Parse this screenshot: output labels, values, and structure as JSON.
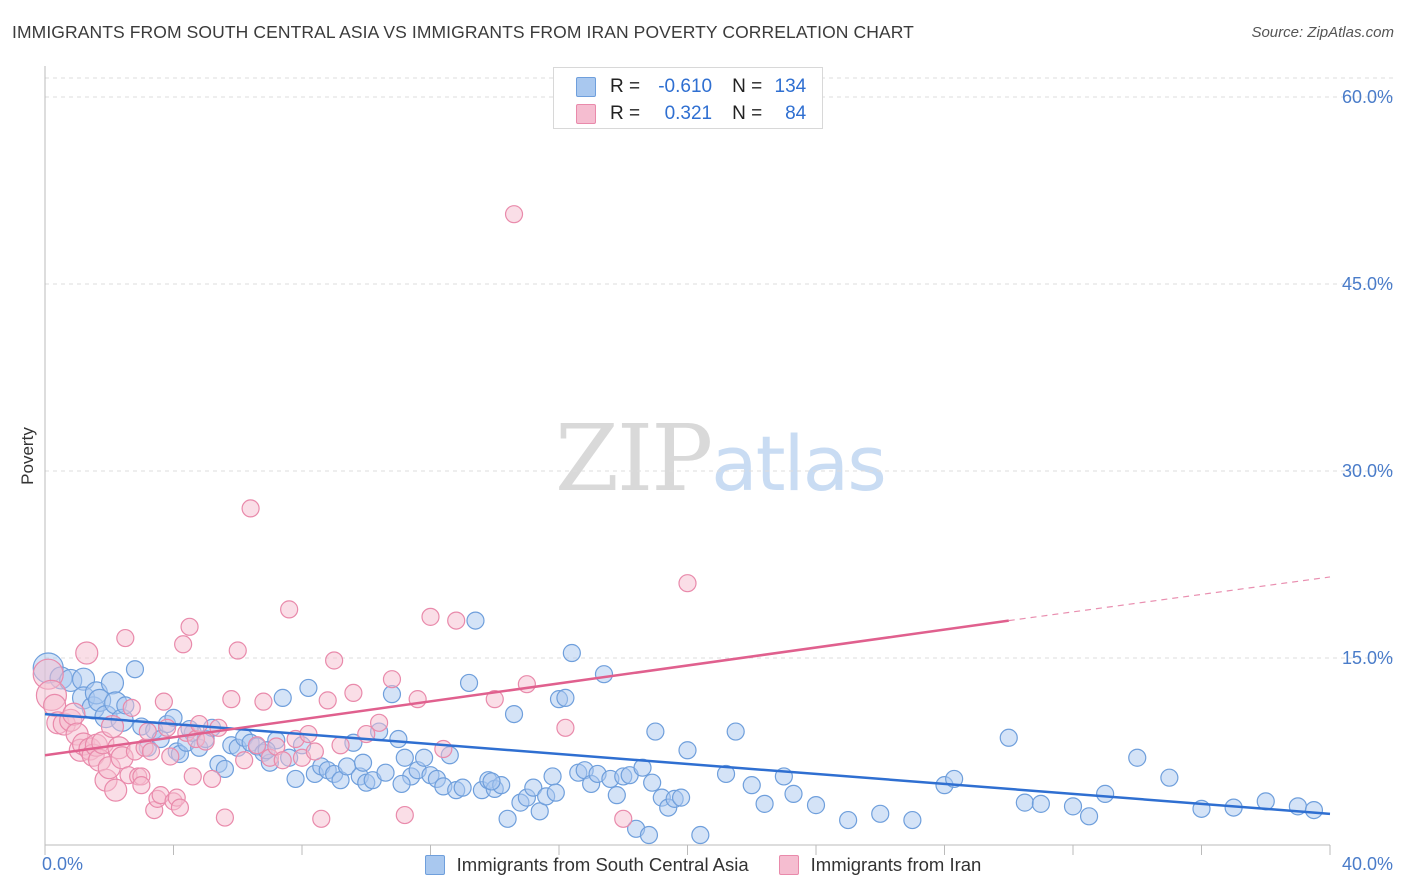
{
  "header": {
    "title": "IMMIGRANTS FROM SOUTH CENTRAL ASIA VS IMMIGRANTS FROM IRAN POVERTY CORRELATION CHART",
    "source": "Source: ZipAtlas.com"
  },
  "watermark": {
    "zip": "ZIP",
    "atlas": "atlas"
  },
  "legend": {
    "rows": [
      {
        "r_label": "R =",
        "r_value": "-0.610",
        "n_label": "N =",
        "n_value": "134",
        "color": "#8fb6ea"
      },
      {
        "r_label": "R =",
        "r_value": "0.321",
        "n_label": "N =",
        "n_value": "84",
        "color": "#f2a7c0"
      }
    ]
  },
  "colors": {
    "blue_fill": "#a9c8ef",
    "blue_stroke": "#6f9fdc",
    "blue_line": "#2f6fd1",
    "pink_fill": "#f5bdd0",
    "pink_stroke": "#e98aab",
    "pink_line": "#e0608e",
    "grid": "#dddddd",
    "tick_label": "#4a7cc9"
  },
  "chart_data": {
    "type": "scatter",
    "title": "IMMIGRANTS FROM SOUTH CENTRAL ASIA VS IMMIGRANTS FROM IRAN POVERTY CORRELATION CHART",
    "xlabel": "",
    "ylabel": "Poverty",
    "xlim": [
      0,
      40
    ],
    "ylim": [
      0,
      60
    ],
    "y_ticks": [
      15,
      30,
      45,
      60
    ],
    "y_tick_labels": [
      "15.0%",
      "30.0%",
      "45.0%",
      "60.0%"
    ],
    "x_tick_labels": [
      "0.0%",
      "40.0%"
    ],
    "grid": true,
    "legend_position": "top-center",
    "series": [
      {
        "name": "Immigrants from South Central Asia",
        "r": -0.61,
        "n": 134,
        "trend": {
          "x": [
            0,
            40
          ],
          "y": [
            10.5,
            2.5
          ]
        },
        "points": [
          [
            0.1,
            14.2
          ],
          [
            0.5,
            13.4
          ],
          [
            0.8,
            13.2
          ],
          [
            1.2,
            13.3
          ],
          [
            1.2,
            11.8
          ],
          [
            1.5,
            11.0
          ],
          [
            1.6,
            12.2
          ],
          [
            1.7,
            11.6
          ],
          [
            1.9,
            10.3
          ],
          [
            2.1,
            13.0
          ],
          [
            2.2,
            11.4
          ],
          [
            2.4,
            10.0
          ],
          [
            2.5,
            11.2
          ],
          [
            2.8,
            14.1
          ],
          [
            3.0,
            9.5
          ],
          [
            3.2,
            7.8
          ],
          [
            3.4,
            9.2
          ],
          [
            3.6,
            8.5
          ],
          [
            3.8,
            9.7
          ],
          [
            4.0,
            10.2
          ],
          [
            4.1,
            7.5
          ],
          [
            4.2,
            7.3
          ],
          [
            4.4,
            8.2
          ],
          [
            4.6,
            9.0
          ],
          [
            4.8,
            7.8
          ],
          [
            5.0,
            8.5
          ],
          [
            5.2,
            9.4
          ],
          [
            5.4,
            6.5
          ],
          [
            5.6,
            6.1
          ],
          [
            5.8,
            8.0
          ],
          [
            6.0,
            7.8
          ],
          [
            6.2,
            8.6
          ],
          [
            6.4,
            8.2
          ],
          [
            6.6,
            7.9
          ],
          [
            6.8,
            7.4
          ],
          [
            7.0,
            6.6
          ],
          [
            7.2,
            8.4
          ],
          [
            7.4,
            11.8
          ],
          [
            7.6,
            7.0
          ],
          [
            7.8,
            5.3
          ],
          [
            8.0,
            8.0
          ],
          [
            8.2,
            12.6
          ],
          [
            8.4,
            5.7
          ],
          [
            8.6,
            6.3
          ],
          [
            8.8,
            6.0
          ],
          [
            9.0,
            5.7
          ],
          [
            9.2,
            5.2
          ],
          [
            9.4,
            6.3
          ],
          [
            9.6,
            8.2
          ],
          [
            9.8,
            5.5
          ],
          [
            10.0,
            5.0
          ],
          [
            10.2,
            5.2
          ],
          [
            10.4,
            9.1
          ],
          [
            10.6,
            5.8
          ],
          [
            10.8,
            12.1
          ],
          [
            11.0,
            8.5
          ],
          [
            11.2,
            7.0
          ],
          [
            11.4,
            5.5
          ],
          [
            11.6,
            6.0
          ],
          [
            11.8,
            7.0
          ],
          [
            12.0,
            5.6
          ],
          [
            12.2,
            5.3
          ],
          [
            12.4,
            4.7
          ],
          [
            12.6,
            7.2
          ],
          [
            12.8,
            4.4
          ],
          [
            13.0,
            4.6
          ],
          [
            13.2,
            13.0
          ],
          [
            13.4,
            18.0
          ],
          [
            13.6,
            4.4
          ],
          [
            13.8,
            5.2
          ],
          [
            14.0,
            4.5
          ],
          [
            14.2,
            4.8
          ],
          [
            14.4,
            2.1
          ],
          [
            14.6,
            10.5
          ],
          [
            14.8,
            3.4
          ],
          [
            15.0,
            3.8
          ],
          [
            15.2,
            4.6
          ],
          [
            15.4,
            2.7
          ],
          [
            15.6,
            3.9
          ],
          [
            15.8,
            5.5
          ],
          [
            16.0,
            11.7
          ],
          [
            16.2,
            11.8
          ],
          [
            16.4,
            15.4
          ],
          [
            16.6,
            5.8
          ],
          [
            16.8,
            6.0
          ],
          [
            17.0,
            4.9
          ],
          [
            17.2,
            5.7
          ],
          [
            17.4,
            13.7
          ],
          [
            17.6,
            5.3
          ],
          [
            17.8,
            4.0
          ],
          [
            18.0,
            5.5
          ],
          [
            18.2,
            5.6
          ],
          [
            18.4,
            1.3
          ],
          [
            18.6,
            6.2
          ],
          [
            18.8,
            0.8
          ],
          [
            19.0,
            9.1
          ],
          [
            19.2,
            3.8
          ],
          [
            19.4,
            3.0
          ],
          [
            19.6,
            3.7
          ],
          [
            19.8,
            3.8
          ],
          [
            20.0,
            7.6
          ],
          [
            20.4,
            0.8
          ],
          [
            21.2,
            5.7
          ],
          [
            21.5,
            9.1
          ],
          [
            22.0,
            4.8
          ],
          [
            22.4,
            3.3
          ],
          [
            23.0,
            5.5
          ],
          [
            23.3,
            4.1
          ],
          [
            24.0,
            3.2
          ],
          [
            25.0,
            2.0
          ],
          [
            26.0,
            2.5
          ],
          [
            27.0,
            2.0
          ],
          [
            28.0,
            4.8
          ],
          [
            28.3,
            5.3
          ],
          [
            30.0,
            8.6
          ],
          [
            30.5,
            3.4
          ],
          [
            31.0,
            3.3
          ],
          [
            32.0,
            3.1
          ],
          [
            32.5,
            2.3
          ],
          [
            33.0,
            4.1
          ],
          [
            34.0,
            7.0
          ],
          [
            35.0,
            5.4
          ],
          [
            36.0,
            2.9
          ],
          [
            37.0,
            3.0
          ],
          [
            38.0,
            3.5
          ],
          [
            39.0,
            3.1
          ],
          [
            39.5,
            2.8
          ],
          [
            4.5,
            9.3
          ],
          [
            6.9,
            7.6
          ],
          [
            9.9,
            6.6
          ],
          [
            11.1,
            4.9
          ],
          [
            13.9,
            5.1
          ],
          [
            15.9,
            4.2
          ],
          [
            18.9,
            5.0
          ]
        ]
      },
      {
        "name": "Immigrants from Iran",
        "r": 0.321,
        "n": 84,
        "trend": {
          "x": [
            0,
            30
          ],
          "y": [
            7.2,
            18.0
          ],
          "dashed_to": {
            "x": 40,
            "y": 21.5
          }
        },
        "points": [
          [
            0.1,
            13.7
          ],
          [
            0.2,
            12.0
          ],
          [
            0.3,
            11.2
          ],
          [
            0.4,
            9.8
          ],
          [
            0.6,
            9.7
          ],
          [
            0.8,
            10.0
          ],
          [
            0.9,
            10.5
          ],
          [
            1.0,
            8.9
          ],
          [
            1.1,
            7.6
          ],
          [
            1.2,
            8.1
          ],
          [
            1.3,
            15.4
          ],
          [
            1.4,
            7.7
          ],
          [
            1.5,
            7.2
          ],
          [
            1.6,
            8.0
          ],
          [
            1.7,
            6.8
          ],
          [
            1.8,
            8.2
          ],
          [
            1.9,
            5.2
          ],
          [
            2.0,
            6.2
          ],
          [
            2.1,
            9.5
          ],
          [
            2.2,
            4.4
          ],
          [
            2.3,
            7.8
          ],
          [
            2.4,
            7.0
          ],
          [
            2.5,
            16.6
          ],
          [
            2.6,
            5.6
          ],
          [
            2.7,
            11.0
          ],
          [
            2.8,
            7.5
          ],
          [
            2.9,
            5.5
          ],
          [
            3.0,
            5.5
          ],
          [
            3.1,
            7.8
          ],
          [
            3.2,
            9.1
          ],
          [
            3.3,
            7.5
          ],
          [
            3.4,
            2.8
          ],
          [
            3.5,
            3.7
          ],
          [
            3.6,
            4.0
          ],
          [
            3.7,
            11.5
          ],
          [
            3.8,
            9.4
          ],
          [
            3.9,
            7.1
          ],
          [
            4.0,
            3.5
          ],
          [
            4.1,
            3.8
          ],
          [
            4.2,
            3.0
          ],
          [
            4.3,
            16.1
          ],
          [
            4.4,
            9.0
          ],
          [
            4.5,
            17.5
          ],
          [
            4.6,
            5.5
          ],
          [
            4.7,
            8.5
          ],
          [
            4.8,
            9.7
          ],
          [
            5.0,
            8.3
          ],
          [
            5.2,
            5.3
          ],
          [
            5.4,
            9.4
          ],
          [
            5.6,
            2.2
          ],
          [
            5.8,
            11.7
          ],
          [
            6.0,
            15.6
          ],
          [
            6.2,
            6.8
          ],
          [
            6.4,
            27.0
          ],
          [
            6.6,
            8.0
          ],
          [
            6.8,
            11.5
          ],
          [
            7.0,
            7.0
          ],
          [
            7.2,
            7.9
          ],
          [
            7.4,
            6.8
          ],
          [
            7.6,
            18.9
          ],
          [
            7.8,
            8.5
          ],
          [
            8.0,
            7.0
          ],
          [
            8.2,
            8.9
          ],
          [
            8.4,
            7.5
          ],
          [
            8.6,
            2.1
          ],
          [
            8.8,
            11.6
          ],
          [
            9.0,
            14.8
          ],
          [
            9.2,
            8.0
          ],
          [
            9.6,
            12.2
          ],
          [
            10.0,
            8.9
          ],
          [
            10.4,
            9.8
          ],
          [
            10.8,
            13.3
          ],
          [
            11.2,
            2.4
          ],
          [
            11.6,
            11.7
          ],
          [
            12.0,
            18.3
          ],
          [
            12.4,
            7.7
          ],
          [
            12.8,
            18.0
          ],
          [
            14.0,
            11.7
          ],
          [
            14.6,
            50.6
          ],
          [
            15.0,
            12.9
          ],
          [
            16.2,
            9.4
          ],
          [
            18.0,
            2.1
          ],
          [
            20.0,
            21.0
          ],
          [
            3.0,
            4.8
          ]
        ]
      }
    ]
  },
  "bottom_legend": {
    "items": [
      {
        "label": "Immigrants from South Central Asia"
      },
      {
        "label": "Immigrants from Iran"
      }
    ]
  }
}
